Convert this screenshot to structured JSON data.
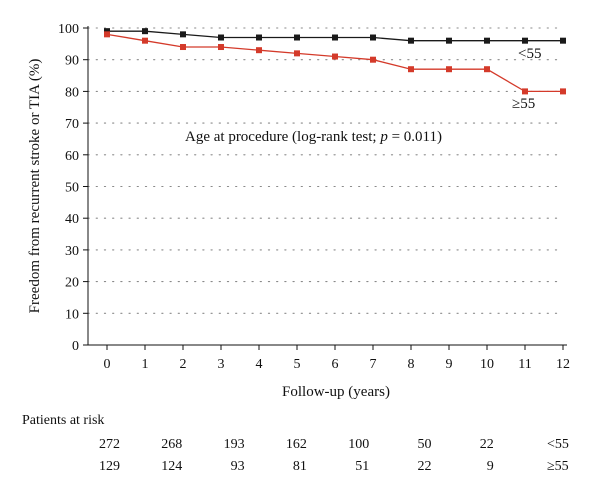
{
  "chart_data": {
    "type": "line",
    "xlabel": "Follow-up (years)",
    "ylabel": "Freedom from recurrent stroke or TIA (%)",
    "xlim": [
      0,
      12
    ],
    "ylim": [
      0,
      100
    ],
    "x_ticks": [
      "0",
      "1",
      "2",
      "3",
      "4",
      "5",
      "6",
      "7",
      "8",
      "9",
      "10",
      "11",
      "12"
    ],
    "y_ticks": [
      "0",
      "10",
      "20",
      "30",
      "40",
      "50",
      "60",
      "70",
      "80",
      "90",
      "100"
    ],
    "grid": "dotted horizontal",
    "annotation": {
      "prefix": "Age at procedure (log-rank test; ",
      "p_symbol": "p",
      "suffix": " = 0.011)"
    },
    "x": [
      0,
      1,
      2,
      3,
      4,
      5,
      6,
      7,
      8,
      9,
      10,
      11,
      12
    ],
    "series": [
      {
        "name": "<55",
        "color": "#1a1a1a",
        "values": [
          99,
          99,
          98,
          97,
          97,
          97,
          97,
          97,
          96,
          96,
          96,
          96,
          96
        ]
      },
      {
        "name": "≥55",
        "color": "#d43a2a",
        "values": [
          98,
          96,
          94,
          94,
          93,
          92,
          91,
          90,
          87,
          87,
          87,
          80,
          80
        ]
      }
    ],
    "risk_table": {
      "title": "Patients at risk",
      "rows": [
        {
          "label": "<55",
          "values": [
            "272",
            "268",
            "193",
            "162",
            "100",
            "50",
            "22"
          ]
        },
        {
          "label": "≥55",
          "values": [
            "129",
            "124",
            "93",
            "81",
            "51",
            "22",
            "9"
          ]
        }
      ]
    }
  }
}
